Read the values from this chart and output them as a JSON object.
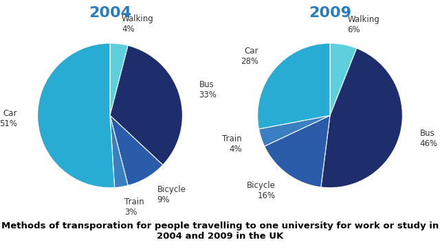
{
  "title_2004": "2004",
  "title_2009": "2009",
  "title_color": "#2b7bbf",
  "title_fontsize": 16,
  "caption": "Methods of transporation for people travelling to one university for work or study in\n2004 and 2009 in the UK",
  "caption_fontsize": 9.5,
  "bg_color": "#ffffff",
  "chart_2004": {
    "labels": [
      "Walking",
      "Bus",
      "Bicycle",
      "Train",
      "Car"
    ],
    "values": [
      4,
      33,
      9,
      3,
      51
    ],
    "colors": [
      "#5ecfdc",
      "#1e2d6b",
      "#2a5caa",
      "#3a7fc1",
      "#29acd4"
    ],
    "startangle": 90,
    "label_fontsize": 8.5
  },
  "chart_2009": {
    "labels": [
      "Walking",
      "Bus",
      "Bicycle",
      "Train",
      "Car"
    ],
    "values": [
      6,
      46,
      16,
      4,
      28
    ],
    "colors": [
      "#5ecfdc",
      "#1e2d6b",
      "#2a5caa",
      "#3a7fc1",
      "#29acd4"
    ],
    "startangle": 90,
    "label_fontsize": 8.5
  }
}
